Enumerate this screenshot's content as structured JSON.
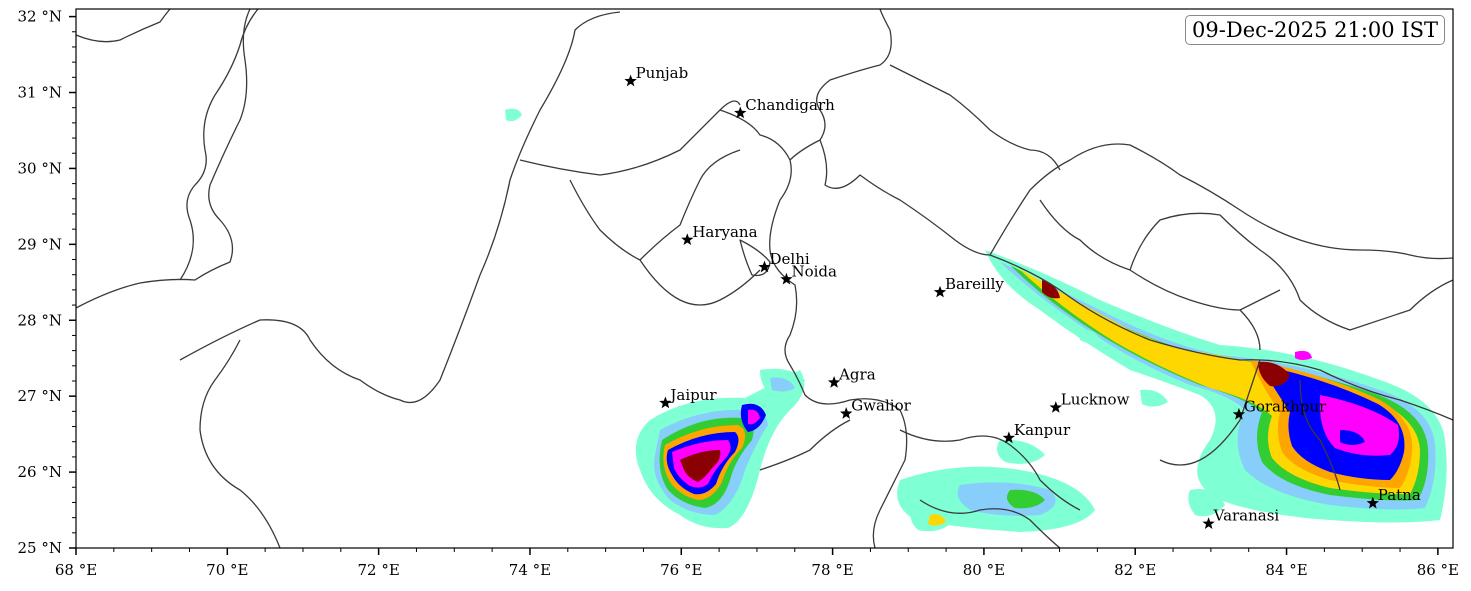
{
  "timestamp": "09-Dec-2025 21:00 IST",
  "axes": {
    "x_ticks": [
      "68 °E",
      "70 °E",
      "72 °E",
      "74 °E",
      "76 °E",
      "78 °E",
      "80 °E",
      "82 °E",
      "84 °E",
      "86 °E"
    ],
    "y_ticks": [
      "25 °N",
      "26 °N",
      "27 °N",
      "28 °N",
      "29 °N",
      "30 °N",
      "31 °N",
      "32 °N"
    ],
    "lon_range": [
      68,
      86.2
    ],
    "lat_range": [
      25,
      32.1
    ]
  },
  "cities": [
    {
      "name": "Punjab",
      "lon": 75.33,
      "lat": 31.15
    },
    {
      "name": "Chandigarh",
      "lon": 76.78,
      "lat": 30.73
    },
    {
      "name": "Haryana",
      "lon": 76.08,
      "lat": 29.06
    },
    {
      "name": "Delhi",
      "lon": 77.1,
      "lat": 28.7
    },
    {
      "name": "Noida",
      "lon": 77.39,
      "lat": 28.54
    },
    {
      "name": "Bareilly",
      "lon": 79.42,
      "lat": 28.37
    },
    {
      "name": "Agra",
      "lon": 78.02,
      "lat": 27.18
    },
    {
      "name": "Jaipur",
      "lon": 75.79,
      "lat": 26.91
    },
    {
      "name": "Gwalior",
      "lon": 78.18,
      "lat": 26.77
    },
    {
      "name": "Lucknow",
      "lon": 80.95,
      "lat": 26.85
    },
    {
      "name": "Kanpur",
      "lon": 80.33,
      "lat": 26.45
    },
    {
      "name": "Gorakhpur",
      "lon": 83.37,
      "lat": 26.76
    },
    {
      "name": "Patna",
      "lon": 85.14,
      "lat": 25.59
    },
    {
      "name": "Varanasi",
      "lon": 82.97,
      "lat": 25.32
    }
  ],
  "palette": {
    "level1": "#7fffd4",
    "level2": "#87cefa",
    "level3": "#32cd32",
    "level4": "#ffd700",
    "level5": "#ffa500",
    "level6": "#1e90ff",
    "level7": "#0000ff",
    "level8": "#ff00ff",
    "level9": "#8b0000",
    "border": "#3a3a3a"
  }
}
